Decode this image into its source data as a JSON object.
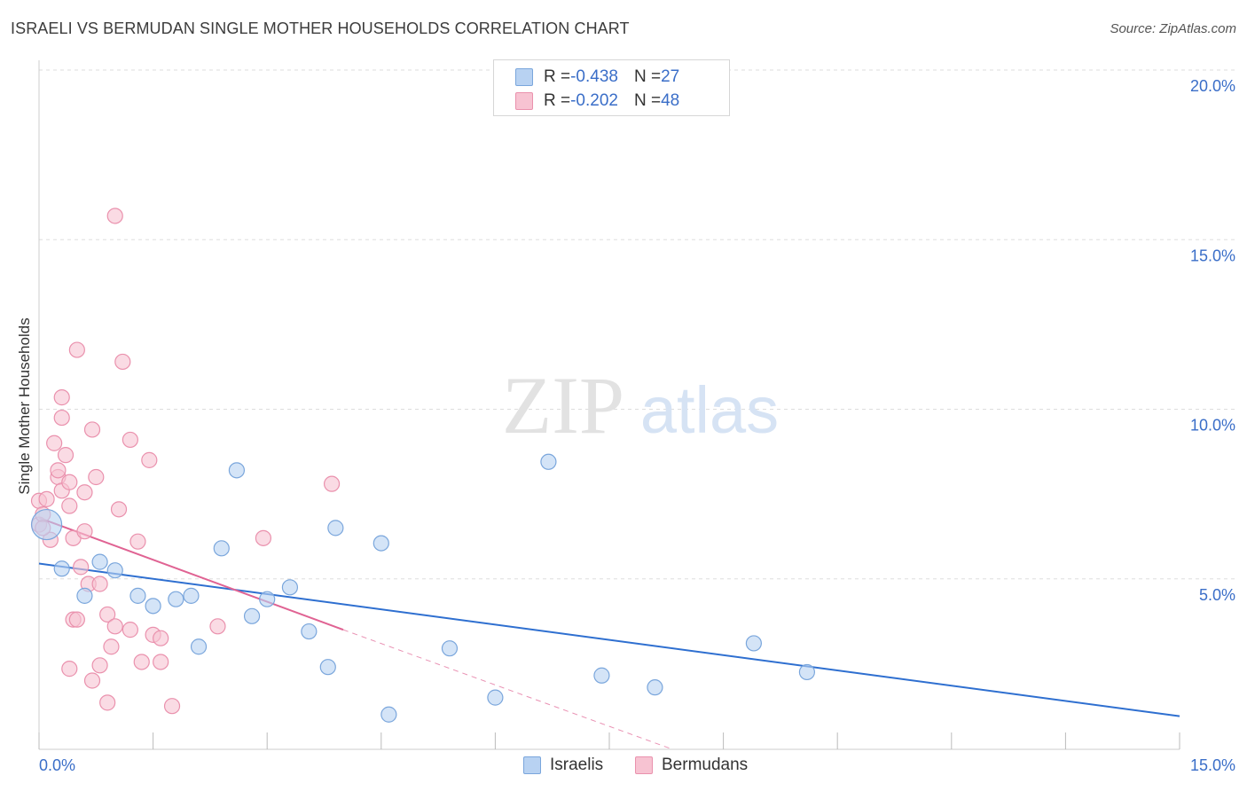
{
  "header": {
    "title": "ISRAELI VS BERMUDAN SINGLE MOTHER HOUSEHOLDS CORRELATION CHART",
    "source": "Source: ZipAtlas.com"
  },
  "watermark": {
    "zip": "ZIP",
    "atlas": "atlas"
  },
  "legend_top": {
    "rows": [
      {
        "r_label": "R = ",
        "r_value": "-0.438",
        "n_label": "N = ",
        "n_value": "27"
      },
      {
        "r_label": "R = ",
        "r_value": "-0.202",
        "n_label": "N = ",
        "n_value": "48"
      }
    ]
  },
  "legend_bottom": {
    "items": [
      "Israelis",
      "Bermudans"
    ]
  },
  "colors": {
    "israelis_fill": "#b8d2f2",
    "israelis_stroke": "#7aa6dc",
    "israelis_line": "#2e6fd0",
    "bermudans_fill": "#f7c3d2",
    "bermudans_stroke": "#ea91ad",
    "bermudans_line": "#e06393",
    "axis_tick_text": "#3a6ec8",
    "grid": "#dddddd"
  },
  "chart_data": {
    "type": "scatter",
    "title": "ISRAELI VS BERMUDAN SINGLE MOTHER HOUSEHOLDS CORRELATION CHART",
    "xlabel": "",
    "ylabel": "Single Mother Households",
    "xlim": [
      0,
      15
    ],
    "ylim": [
      0,
      20
    ],
    "x_ticks": [
      "0.0%",
      "15.0%"
    ],
    "y_ticks": [
      "5.0%",
      "10.0%",
      "15.0%",
      "20.0%"
    ],
    "grid": true,
    "legend_position": "top-center",
    "series": [
      {
        "name": "Israelis",
        "r": -0.438,
        "n": 27,
        "trend": {
          "x": [
            0.0,
            15.0
          ],
          "y": [
            5.45,
            0.95
          ]
        },
        "points": [
          {
            "x": 0.1,
            "y": 6.6,
            "big": true
          },
          {
            "x": 0.3,
            "y": 5.3
          },
          {
            "x": 0.6,
            "y": 4.5
          },
          {
            "x": 0.8,
            "y": 5.5
          },
          {
            "x": 1.0,
            "y": 5.25
          },
          {
            "x": 1.3,
            "y": 4.5
          },
          {
            "x": 1.5,
            "y": 4.2
          },
          {
            "x": 1.8,
            "y": 4.4
          },
          {
            "x": 2.0,
            "y": 4.5
          },
          {
            "x": 2.1,
            "y": 3.0
          },
          {
            "x": 2.4,
            "y": 5.9
          },
          {
            "x": 2.6,
            "y": 8.2
          },
          {
            "x": 2.8,
            "y": 3.9
          },
          {
            "x": 3.0,
            "y": 4.4
          },
          {
            "x": 3.3,
            "y": 4.75
          },
          {
            "x": 3.55,
            "y": 3.45
          },
          {
            "x": 3.8,
            "y": 2.4
          },
          {
            "x": 3.9,
            "y": 6.5
          },
          {
            "x": 4.5,
            "y": 6.05
          },
          {
            "x": 4.6,
            "y": 1.0
          },
          {
            "x": 5.4,
            "y": 2.95
          },
          {
            "x": 6.0,
            "y": 1.5
          },
          {
            "x": 6.7,
            "y": 8.45
          },
          {
            "x": 7.4,
            "y": 2.15
          },
          {
            "x": 8.1,
            "y": 1.8
          },
          {
            "x": 9.4,
            "y": 3.1
          },
          {
            "x": 10.1,
            "y": 2.25
          }
        ]
      },
      {
        "name": "Bermudans",
        "r": -0.202,
        "n": 48,
        "trend": {
          "x": [
            0.0,
            4.0
          ],
          "y": [
            6.8,
            3.5
          ]
        },
        "trend_extension": {
          "x": [
            4.0,
            8.3
          ],
          "y": [
            3.5,
            0.0
          ]
        },
        "points": [
          {
            "x": 0.0,
            "y": 7.3
          },
          {
            "x": 0.0,
            "y": 6.6
          },
          {
            "x": 0.05,
            "y": 6.9
          },
          {
            "x": 0.1,
            "y": 7.35
          },
          {
            "x": 0.15,
            "y": 6.15
          },
          {
            "x": 0.2,
            "y": 9.0
          },
          {
            "x": 0.25,
            "y": 8.0
          },
          {
            "x": 0.25,
            "y": 8.2
          },
          {
            "x": 0.3,
            "y": 9.75
          },
          {
            "x": 0.3,
            "y": 10.35
          },
          {
            "x": 0.3,
            "y": 7.6
          },
          {
            "x": 0.35,
            "y": 8.65
          },
          {
            "x": 0.4,
            "y": 7.15
          },
          {
            "x": 0.4,
            "y": 7.85
          },
          {
            "x": 0.45,
            "y": 6.2
          },
          {
            "x": 0.4,
            "y": 2.35
          },
          {
            "x": 0.45,
            "y": 3.8
          },
          {
            "x": 0.5,
            "y": 3.8
          },
          {
            "x": 0.5,
            "y": 11.75
          },
          {
            "x": 0.55,
            "y": 5.35
          },
          {
            "x": 0.6,
            "y": 7.55
          },
          {
            "x": 0.6,
            "y": 6.4
          },
          {
            "x": 0.65,
            "y": 4.85
          },
          {
            "x": 0.7,
            "y": 2.0
          },
          {
            "x": 0.7,
            "y": 9.4
          },
          {
            "x": 0.75,
            "y": 8.0
          },
          {
            "x": 0.8,
            "y": 4.85
          },
          {
            "x": 0.8,
            "y": 2.45
          },
          {
            "x": 0.9,
            "y": 1.35
          },
          {
            "x": 0.9,
            "y": 3.95
          },
          {
            "x": 0.95,
            "y": 3.0
          },
          {
            "x": 1.0,
            "y": 3.6
          },
          {
            "x": 1.0,
            "y": 15.7
          },
          {
            "x": 1.05,
            "y": 7.05
          },
          {
            "x": 1.1,
            "y": 11.4
          },
          {
            "x": 1.2,
            "y": 3.5
          },
          {
            "x": 1.2,
            "y": 9.1
          },
          {
            "x": 1.3,
            "y": 6.1
          },
          {
            "x": 1.35,
            "y": 2.55
          },
          {
            "x": 1.45,
            "y": 8.5
          },
          {
            "x": 1.5,
            "y": 3.35
          },
          {
            "x": 1.6,
            "y": 3.25
          },
          {
            "x": 1.6,
            "y": 2.55
          },
          {
            "x": 1.75,
            "y": 1.25
          },
          {
            "x": 2.35,
            "y": 3.6
          },
          {
            "x": 2.95,
            "y": 6.2
          },
          {
            "x": 3.85,
            "y": 7.8
          },
          {
            "x": 0.05,
            "y": 6.5
          }
        ]
      }
    ]
  }
}
